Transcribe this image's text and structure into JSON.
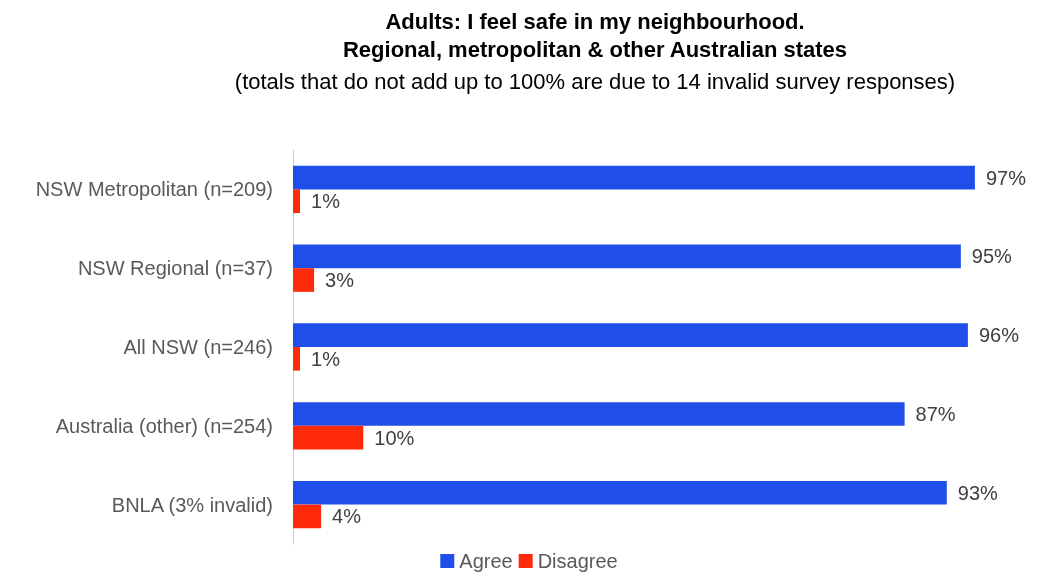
{
  "chart_data": {
    "type": "bar",
    "orientation": "horizontal",
    "title": "Adults: I feel safe in my neighbourhood.\nRegional, metropolitan & other Australian states",
    "subtitle": "(totals that do not add up to 100% are due to 14 invalid survey responses)",
    "categories": [
      "NSW Metropolitan (n=209)",
      "NSW Regional (n=37)",
      "All NSW (n=246)",
      "Australia (other) (n=254)",
      "BNLA (3% invalid)"
    ],
    "series": [
      {
        "name": "Agree",
        "color": "#1f4fe8",
        "values": [
          97,
          95,
          96,
          87,
          93
        ],
        "value_labels": [
          "97%",
          "95%",
          "96%",
          "87%",
          "93%"
        ]
      },
      {
        "name": "Disagree",
        "color": "#ff2a0a",
        "values": [
          1,
          3,
          1,
          10,
          4
        ],
        "value_labels": [
          "1%",
          "3%",
          "1%",
          "10%",
          "4%"
        ]
      }
    ],
    "legend": "bottom"
  }
}
